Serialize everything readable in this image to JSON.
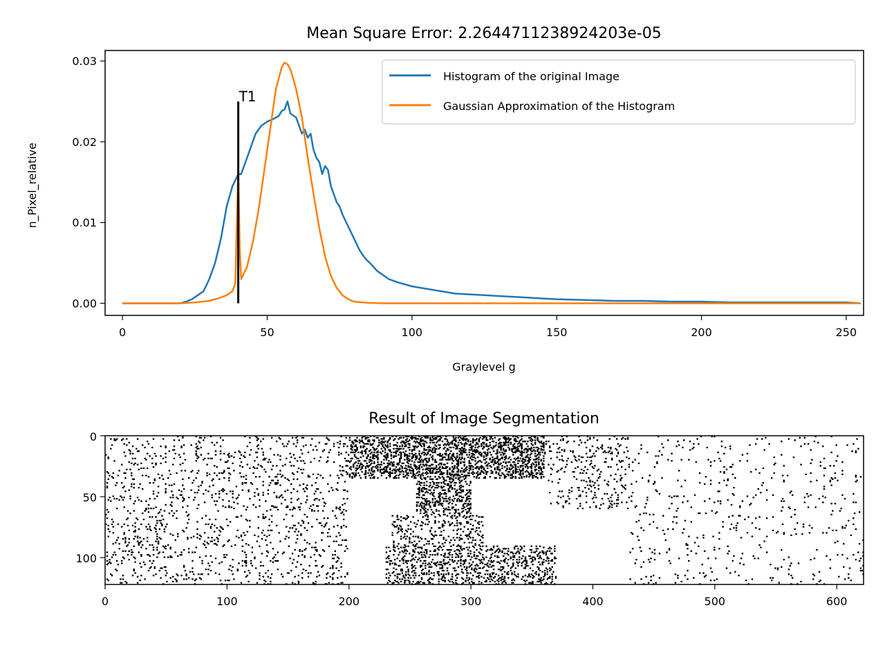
{
  "chart_data": [
    {
      "type": "line",
      "title": "Mean Square Error: 2.2644711238924203e-05",
      "xlabel": "Graylevel g",
      "ylabel": "n_Pixel_relative",
      "xlim": [
        -6,
        256
      ],
      "ylim": [
        -0.0015,
        0.0313
      ],
      "xticks": [
        0,
        50,
        100,
        150,
        200,
        250
      ],
      "yticks": [
        0.0,
        0.01,
        0.02,
        0.03
      ],
      "ytick_labels": [
        "0.00",
        "0.01",
        "0.02",
        "0.03"
      ],
      "legend_position": "upper right",
      "grid": false,
      "series": [
        {
          "name": "Histogram of the original Image",
          "color": "#1f77b4",
          "x": [
            0,
            10,
            20,
            22,
            24,
            26,
            28,
            30,
            32,
            34,
            36,
            38,
            40,
            41,
            42,
            44,
            46,
            48,
            50,
            52,
            54,
            55,
            56,
            57,
            58,
            60,
            62,
            63,
            64,
            65,
            66,
            67,
            68,
            69,
            70,
            71,
            72,
            73,
            74,
            75,
            76,
            78,
            80,
            82,
            84,
            86,
            88,
            90,
            92,
            95,
            100,
            105,
            110,
            115,
            120,
            125,
            130,
            135,
            140,
            145,
            150,
            160,
            170,
            180,
            190,
            200,
            210,
            220,
            230,
            240,
            250,
            255
          ],
          "y": [
            0,
            0,
            0,
            0.0002,
            0.0005,
            0.001,
            0.0015,
            0.003,
            0.005,
            0.008,
            0.012,
            0.0145,
            0.016,
            0.016,
            0.017,
            0.019,
            0.021,
            0.022,
            0.0225,
            0.0228,
            0.0232,
            0.0238,
            0.024,
            0.025,
            0.0235,
            0.023,
            0.021,
            0.0215,
            0.0205,
            0.021,
            0.019,
            0.018,
            0.0175,
            0.016,
            0.017,
            0.0165,
            0.0145,
            0.0135,
            0.0125,
            0.012,
            0.011,
            0.0095,
            0.008,
            0.0065,
            0.0055,
            0.0048,
            0.004,
            0.0035,
            0.003,
            0.0026,
            0.0021,
            0.0018,
            0.0015,
            0.0012,
            0.0011,
            0.001,
            0.0009,
            0.0008,
            0.0007,
            0.0006,
            0.0005,
            0.0004,
            0.0003,
            0.0003,
            0.0002,
            0.0002,
            0.0001,
            0.0001,
            0.0001,
            0.0001,
            0.0001,
            0
          ]
        },
        {
          "name": "Gaussian Approximation of the Histogram",
          "color": "#ff7f0e",
          "x": [
            0,
            10,
            20,
            25,
            30,
            33,
            36,
            38,
            39,
            39.5,
            40,
            40.5,
            41,
            43,
            45,
            47,
            49,
            51,
            53,
            55,
            56,
            57,
            58,
            60,
            62,
            64,
            66,
            68,
            70,
            72,
            74,
            76,
            78,
            80,
            85,
            90,
            100,
            150,
            200,
            255
          ],
          "y": [
            0,
            0,
            0,
            0.0001,
            0.0003,
            0.0006,
            0.001,
            0.0015,
            0.0025,
            0.01,
            0.0163,
            0.007,
            0.003,
            0.0045,
            0.0075,
            0.0115,
            0.0165,
            0.0215,
            0.0265,
            0.0292,
            0.0298,
            0.0296,
            0.029,
            0.0265,
            0.023,
            0.018,
            0.0135,
            0.0093,
            0.0058,
            0.0034,
            0.0019,
            0.001,
            0.0005,
            0.0002,
            5e-05,
            0,
            0,
            0,
            0,
            0
          ]
        }
      ],
      "vline": {
        "x": 40,
        "y_start": 0.0,
        "y_end": 0.025,
        "label": "T1",
        "color": "#000000"
      }
    },
    {
      "type": "heatmap",
      "title": "Result of Image Segmentation",
      "width": 622,
      "height": 122,
      "colormap": [
        "#ffffff",
        "#000000"
      ],
      "xticks": [
        0,
        100,
        200,
        300,
        400,
        500,
        600
      ],
      "yticks": [
        0,
        50,
        100
      ],
      "dark_regions": [
        {
          "x": [
            200,
            360
          ],
          "y": [
            0,
            35
          ],
          "density": 0.28
        },
        {
          "x": [
            255,
            300
          ],
          "y": [
            30,
            65
          ],
          "density": 0.22
        },
        {
          "x": [
            235,
            310
          ],
          "y": [
            65,
            90
          ],
          "density": 0.12
        },
        {
          "x": [
            230,
            370
          ],
          "y": [
            90,
            122
          ],
          "density": 0.18
        },
        {
          "x": [
            0,
            200
          ],
          "y": [
            0,
            122
          ],
          "density": 0.05
        },
        {
          "x": [
            360,
            430
          ],
          "y": [
            0,
            60
          ],
          "density": 0.06
        },
        {
          "x": [
            430,
            622
          ],
          "y": [
            0,
            122
          ],
          "density": 0.02
        }
      ]
    }
  ]
}
